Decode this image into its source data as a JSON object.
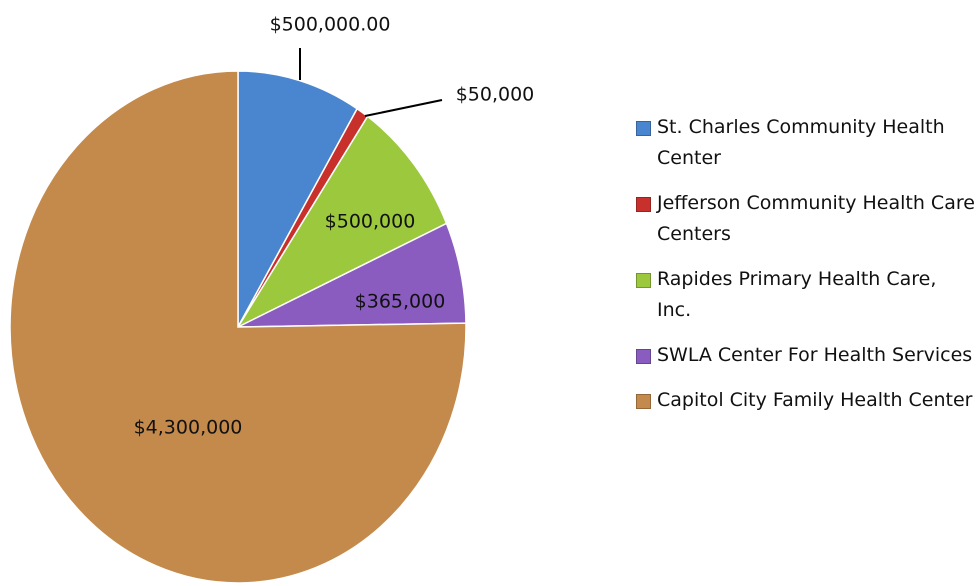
{
  "chart_data": {
    "type": "pie",
    "categories": [
      "St. Charles Community Health Center",
      "Jefferson Community Health Care Centers",
      "Rapides Primary Health Care, Inc.",
      "SWLA Center For Health Services",
      "Capitol City Family Health Center"
    ],
    "values": [
      500000,
      50000,
      500000,
      365000,
      4300000
    ],
    "value_labels": [
      "$500,000.00",
      "$50,000",
      "$500,000",
      "$365,000",
      "$4,300,000"
    ],
    "colors": [
      "#4a86d0",
      "#c8302c",
      "#9cc83e",
      "#8a5cc0",
      "#c48a4c"
    ],
    "legend": "right"
  }
}
